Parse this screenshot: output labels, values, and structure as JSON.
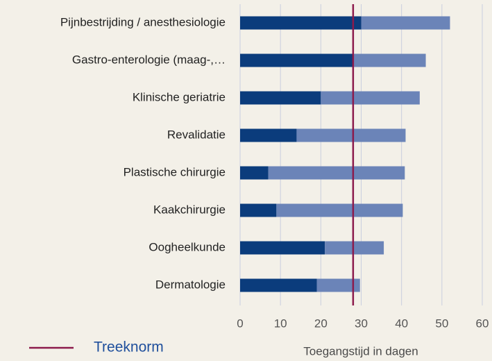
{
  "chart_data": {
    "type": "stacked_barh",
    "categories": [
      "Pijnbestrijding / anesthesiologie",
      "Gastro-enterologie (maag-,…",
      "Klinische geriatrie",
      "Revalidatie",
      "Plastische chirurgie",
      "Kaakchirurgie",
      "Oogheelkunde",
      "Dermatologie"
    ],
    "series": [
      {
        "color": "#0b3c7c",
        "values": [
          30,
          28,
          20,
          14,
          7,
          9,
          21,
          19
        ]
      },
      {
        "color": "#6b84b8",
        "values": [
          22,
          18,
          24.5,
          27,
          33.8,
          31.3,
          14.6,
          10.7
        ]
      }
    ],
    "xlim": [
      0,
      60
    ],
    "xticks": [
      0,
      10,
      20,
      30,
      40,
      50,
      60
    ],
    "xlabel": "Toegangstijd in dagen",
    "grid": true,
    "reference_lines": [
      {
        "label": "Treeknorm",
        "value": 28,
        "color": "#8c1a4b"
      }
    ]
  }
}
